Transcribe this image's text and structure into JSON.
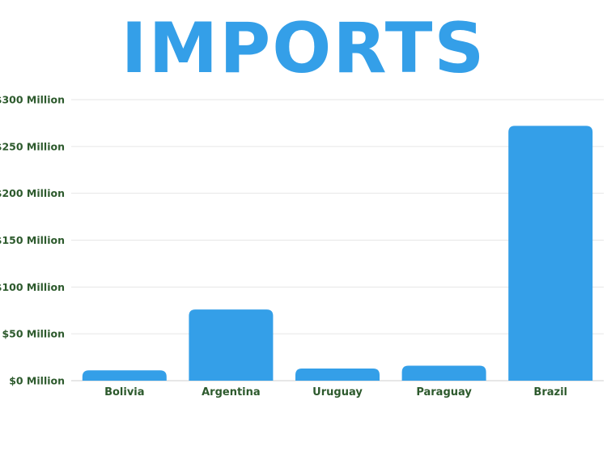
{
  "chart_data": {
    "type": "bar",
    "title": "IMPORTS",
    "categories": [
      "Bolivia",
      "Argentina",
      "Uruguay",
      "Paraguay",
      "Brazil"
    ],
    "values": [
      11,
      76,
      13,
      16,
      272
    ],
    "unit": "Million USD",
    "ylim": [
      0,
      300
    ],
    "yticks": [
      {
        "value": 0,
        "label": "$0 Million"
      },
      {
        "value": 50,
        "label": "$50 Million"
      },
      {
        "value": 100,
        "label": "$100 Million"
      },
      {
        "value": 150,
        "label": "$150 Million"
      },
      {
        "value": 200,
        "label": "$200 Million"
      },
      {
        "value": 250,
        "label": "$250 Million"
      },
      {
        "value": 300,
        "label": "$300 Million"
      }
    ],
    "grid": true,
    "legend": "none",
    "bar_color": "#349fe8",
    "label_color": "#2d5a2d",
    "grid_color": "#e6e6e6"
  }
}
